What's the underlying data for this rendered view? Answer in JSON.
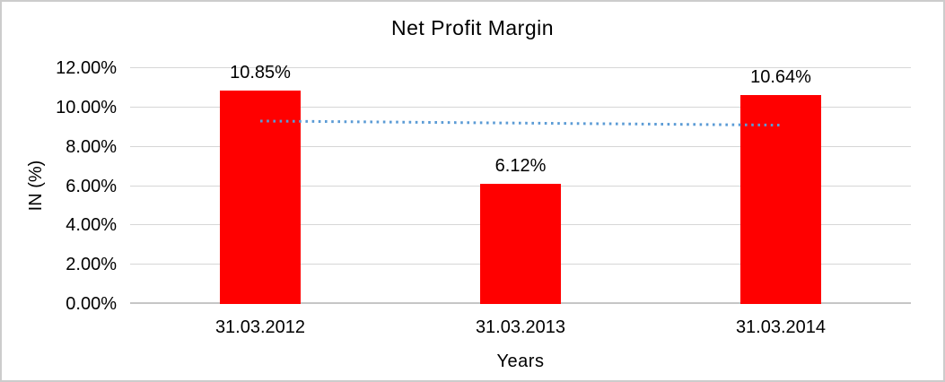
{
  "page": {
    "background": "#FFFFFF",
    "border_color": "#CCCCCC"
  },
  "chart_data": {
    "type": "bar",
    "title": "Net Profit Margin",
    "categories": [
      "31.03.2012",
      "31.03.2013",
      "31.03.2014"
    ],
    "values": [
      10.85,
      6.12,
      10.64
    ],
    "data_labels": [
      "10.85%",
      "6.12%",
      "10.64%"
    ],
    "xlabel": "Years",
    "ylabel": "IN (%)",
    "ylim": [
      0,
      12
    ],
    "yticks": [
      "0.00%",
      "2.00%",
      "4.00%",
      "6.00%",
      "8.00%",
      "10.00%",
      "12.00%"
    ],
    "grid": true,
    "legend": "none",
    "bar_color": "#FF0000",
    "gridline_color": "#D6D6D6",
    "axis_line_color": "#C6C6C6",
    "trendline": {
      "style": "dotted",
      "color": "#5B9BD5",
      "start_value": 9.31,
      "end_value": 9.1
    }
  }
}
